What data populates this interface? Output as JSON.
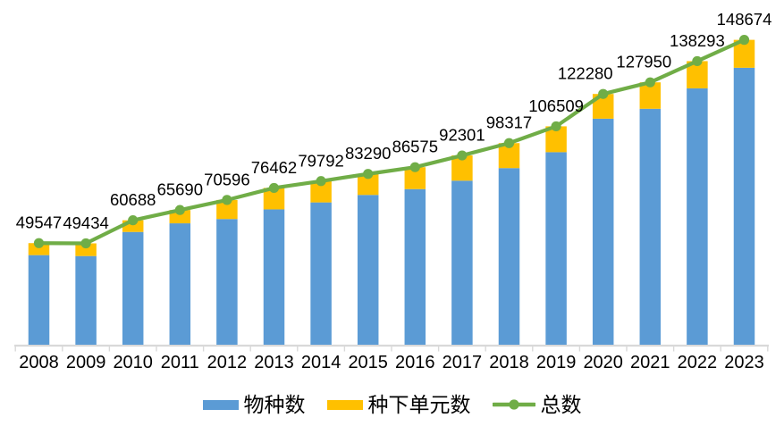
{
  "chart_data": {
    "type": "bar",
    "variant": "stacked-bars-with-total-line-overlay",
    "title": "",
    "xlabel": "",
    "ylabel": "",
    "categories": [
      "2008",
      "2009",
      "2010",
      "2011",
      "2012",
      "2013",
      "2014",
      "2015",
      "2016",
      "2017",
      "2018",
      "2019",
      "2020",
      "2021",
      "2022",
      "2023"
    ],
    "series": [
      {
        "name": "物种数",
        "kind": "bar-stack",
        "color": "#5B9BD5",
        "values": [
          43700,
          43250,
          55000,
          59200,
          61300,
          66000,
          69400,
          73050,
          75900,
          80000,
          86130,
          93900,
          110231,
          115064,
          125034,
          135061
        ]
      },
      {
        "name": "种下单元数",
        "kind": "bar-stack",
        "color": "#FFC000",
        "values": [
          5847,
          6184,
          5688,
          6490,
          9296,
          10462,
          10392,
          10240,
          10675,
          12301,
          12187,
          12609,
          12049,
          12886,
          13259,
          13613
        ]
      },
      {
        "name": "总数",
        "kind": "line",
        "color": "#70AD47",
        "show_data_labels": true,
        "values": [
          49547,
          49434,
          60688,
          65690,
          70596,
          76462,
          79792,
          83290,
          86575,
          92301,
          98317,
          106509,
          122280,
          127950,
          138293,
          148674
        ]
      }
    ],
    "data_labels": [
      "49547",
      "49434",
      "60688",
      "65690",
      "70596",
      "76462",
      "79792",
      "83290",
      "86575",
      "92301",
      "98317",
      "106509",
      "122280",
      "127950",
      "138293",
      "148674"
    ],
    "ylim": [
      0,
      160000
    ],
    "grid": false,
    "y_axis_visible": false,
    "legend_position": "bottom",
    "axis_color": "#D9D9D9",
    "text_color": "#000000"
  }
}
